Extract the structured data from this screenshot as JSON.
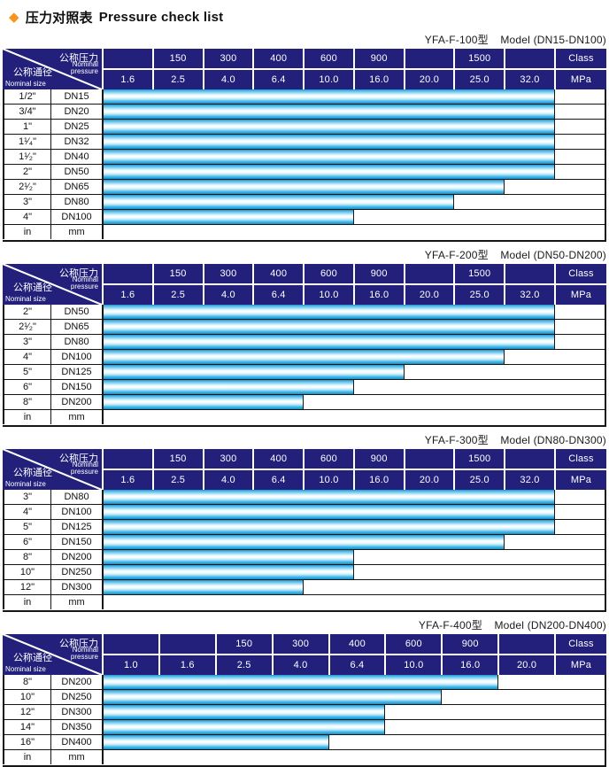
{
  "title": {
    "diamond_icon": "◆",
    "text_zh": "压力对照表",
    "text_en": "Pressure check list"
  },
  "corner_header": {
    "pressure_zh": "公称压力",
    "pressure_en": "Nominal\npressure",
    "size_zh": "公称通径",
    "size_en": "Nominal size"
  },
  "colors": {
    "header_navy": "#22207a",
    "bar_cyan": "#29abe2",
    "bar_edge": "#1d8ec6",
    "diamond_orange": "#f7941d",
    "grid_black": "#161616"
  },
  "tables": [
    {
      "model": "YFA-F-100型",
      "model_range": "Model (DN15-DN100)",
      "class_label": "Class",
      "mpa_label": "MPa",
      "class_row": [
        "",
        "150",
        "300",
        "400",
        "600",
        "900",
        "",
        "1500",
        ""
      ],
      "mpa_row": [
        "1.6",
        "2.5",
        "4.0",
        "6.4",
        "10.0",
        "16.0",
        "20.0",
        "25.0",
        "32.0"
      ],
      "rows": [
        {
          "size_in": "1/2\"",
          "size_mm": "DN15",
          "bar_cols": 9
        },
        {
          "size_in": "3/4\"",
          "size_mm": "DN20",
          "bar_cols": 9
        },
        {
          "size_in": "1\"",
          "size_mm": "DN25",
          "bar_cols": 9
        },
        {
          "size_in": "1¹⁄₄\"",
          "size_mm": "DN32",
          "bar_cols": 9
        },
        {
          "size_in": "1¹⁄₂\"",
          "size_mm": "DN40",
          "bar_cols": 9
        },
        {
          "size_in": "2\"",
          "size_mm": "DN50",
          "bar_cols": 9
        },
        {
          "size_in": "2¹⁄₂\"",
          "size_mm": "DN65",
          "bar_cols": 8
        },
        {
          "size_in": "3\"",
          "size_mm": "DN80",
          "bar_cols": 7
        },
        {
          "size_in": "4\"",
          "size_mm": "DN100",
          "bar_cols": 5
        },
        {
          "size_in": "in",
          "size_mm": "mm",
          "bar_cols": 0
        }
      ]
    },
    {
      "model": "YFA-F-200型",
      "model_range": "Model (DN50-DN200)",
      "class_label": "Class",
      "mpa_label": "MPa",
      "class_row": [
        "",
        "150",
        "300",
        "400",
        "600",
        "900",
        "",
        "1500",
        ""
      ],
      "mpa_row": [
        "1.6",
        "2.5",
        "4.0",
        "6.4",
        "10.0",
        "16.0",
        "20.0",
        "25.0",
        "32.0"
      ],
      "rows": [
        {
          "size_in": "2\"",
          "size_mm": "DN50",
          "bar_cols": 9
        },
        {
          "size_in": "2¹⁄₂\"",
          "size_mm": "DN65",
          "bar_cols": 9
        },
        {
          "size_in": "3\"",
          "size_mm": "DN80",
          "bar_cols": 9
        },
        {
          "size_in": "4\"",
          "size_mm": "DN100",
          "bar_cols": 8
        },
        {
          "size_in": "5\"",
          "size_mm": "DN125",
          "bar_cols": 6
        },
        {
          "size_in": "6\"",
          "size_mm": "DN150",
          "bar_cols": 5
        },
        {
          "size_in": "8\"",
          "size_mm": "DN200",
          "bar_cols": 4
        },
        {
          "size_in": "in",
          "size_mm": "mm",
          "bar_cols": 0
        }
      ]
    },
    {
      "model": "YFA-F-300型",
      "model_range": "Model (DN80-DN300)",
      "class_label": "Class",
      "mpa_label": "MPa",
      "class_row": [
        "",
        "150",
        "300",
        "400",
        "600",
        "900",
        "",
        "1500",
        ""
      ],
      "mpa_row": [
        "1.6",
        "2.5",
        "4.0",
        "6.4",
        "10.0",
        "16.0",
        "20.0",
        "25.0",
        "32.0"
      ],
      "rows": [
        {
          "size_in": "3\"",
          "size_mm": "DN80",
          "bar_cols": 9
        },
        {
          "size_in": "4\"",
          "size_mm": "DN100",
          "bar_cols": 9
        },
        {
          "size_in": "5\"",
          "size_mm": "DN125",
          "bar_cols": 9
        },
        {
          "size_in": "6\"",
          "size_mm": "DN150",
          "bar_cols": 8
        },
        {
          "size_in": "8\"",
          "size_mm": "DN200",
          "bar_cols": 5
        },
        {
          "size_in": "10\"",
          "size_mm": "DN250",
          "bar_cols": 5
        },
        {
          "size_in": "12\"",
          "size_mm": "DN300",
          "bar_cols": 4
        },
        {
          "size_in": "in",
          "size_mm": "mm",
          "bar_cols": 0
        }
      ]
    },
    {
      "model": "YFA-F-400型",
      "model_range": "Model (DN200-DN400)",
      "class_label": "Class",
      "mpa_label": "MPa",
      "class_row": [
        "",
        "",
        "150",
        "300",
        "400",
        "600",
        "900",
        ""
      ],
      "mpa_row": [
        "1.0",
        "1.6",
        "2.5",
        "4.0",
        "6.4",
        "10.0",
        "16.0",
        "20.0"
      ],
      "rows": [
        {
          "size_in": "8\"",
          "size_mm": "DN200",
          "bar_cols": 7
        },
        {
          "size_in": "10\"",
          "size_mm": "DN250",
          "bar_cols": 6
        },
        {
          "size_in": "12\"",
          "size_mm": "DN300",
          "bar_cols": 5
        },
        {
          "size_in": "14\"",
          "size_mm": "DN350",
          "bar_cols": 5
        },
        {
          "size_in": "16\"",
          "size_mm": "DN400",
          "bar_cols": 4
        },
        {
          "size_in": "in",
          "size_mm": "mm",
          "bar_cols": 0
        }
      ]
    }
  ]
}
